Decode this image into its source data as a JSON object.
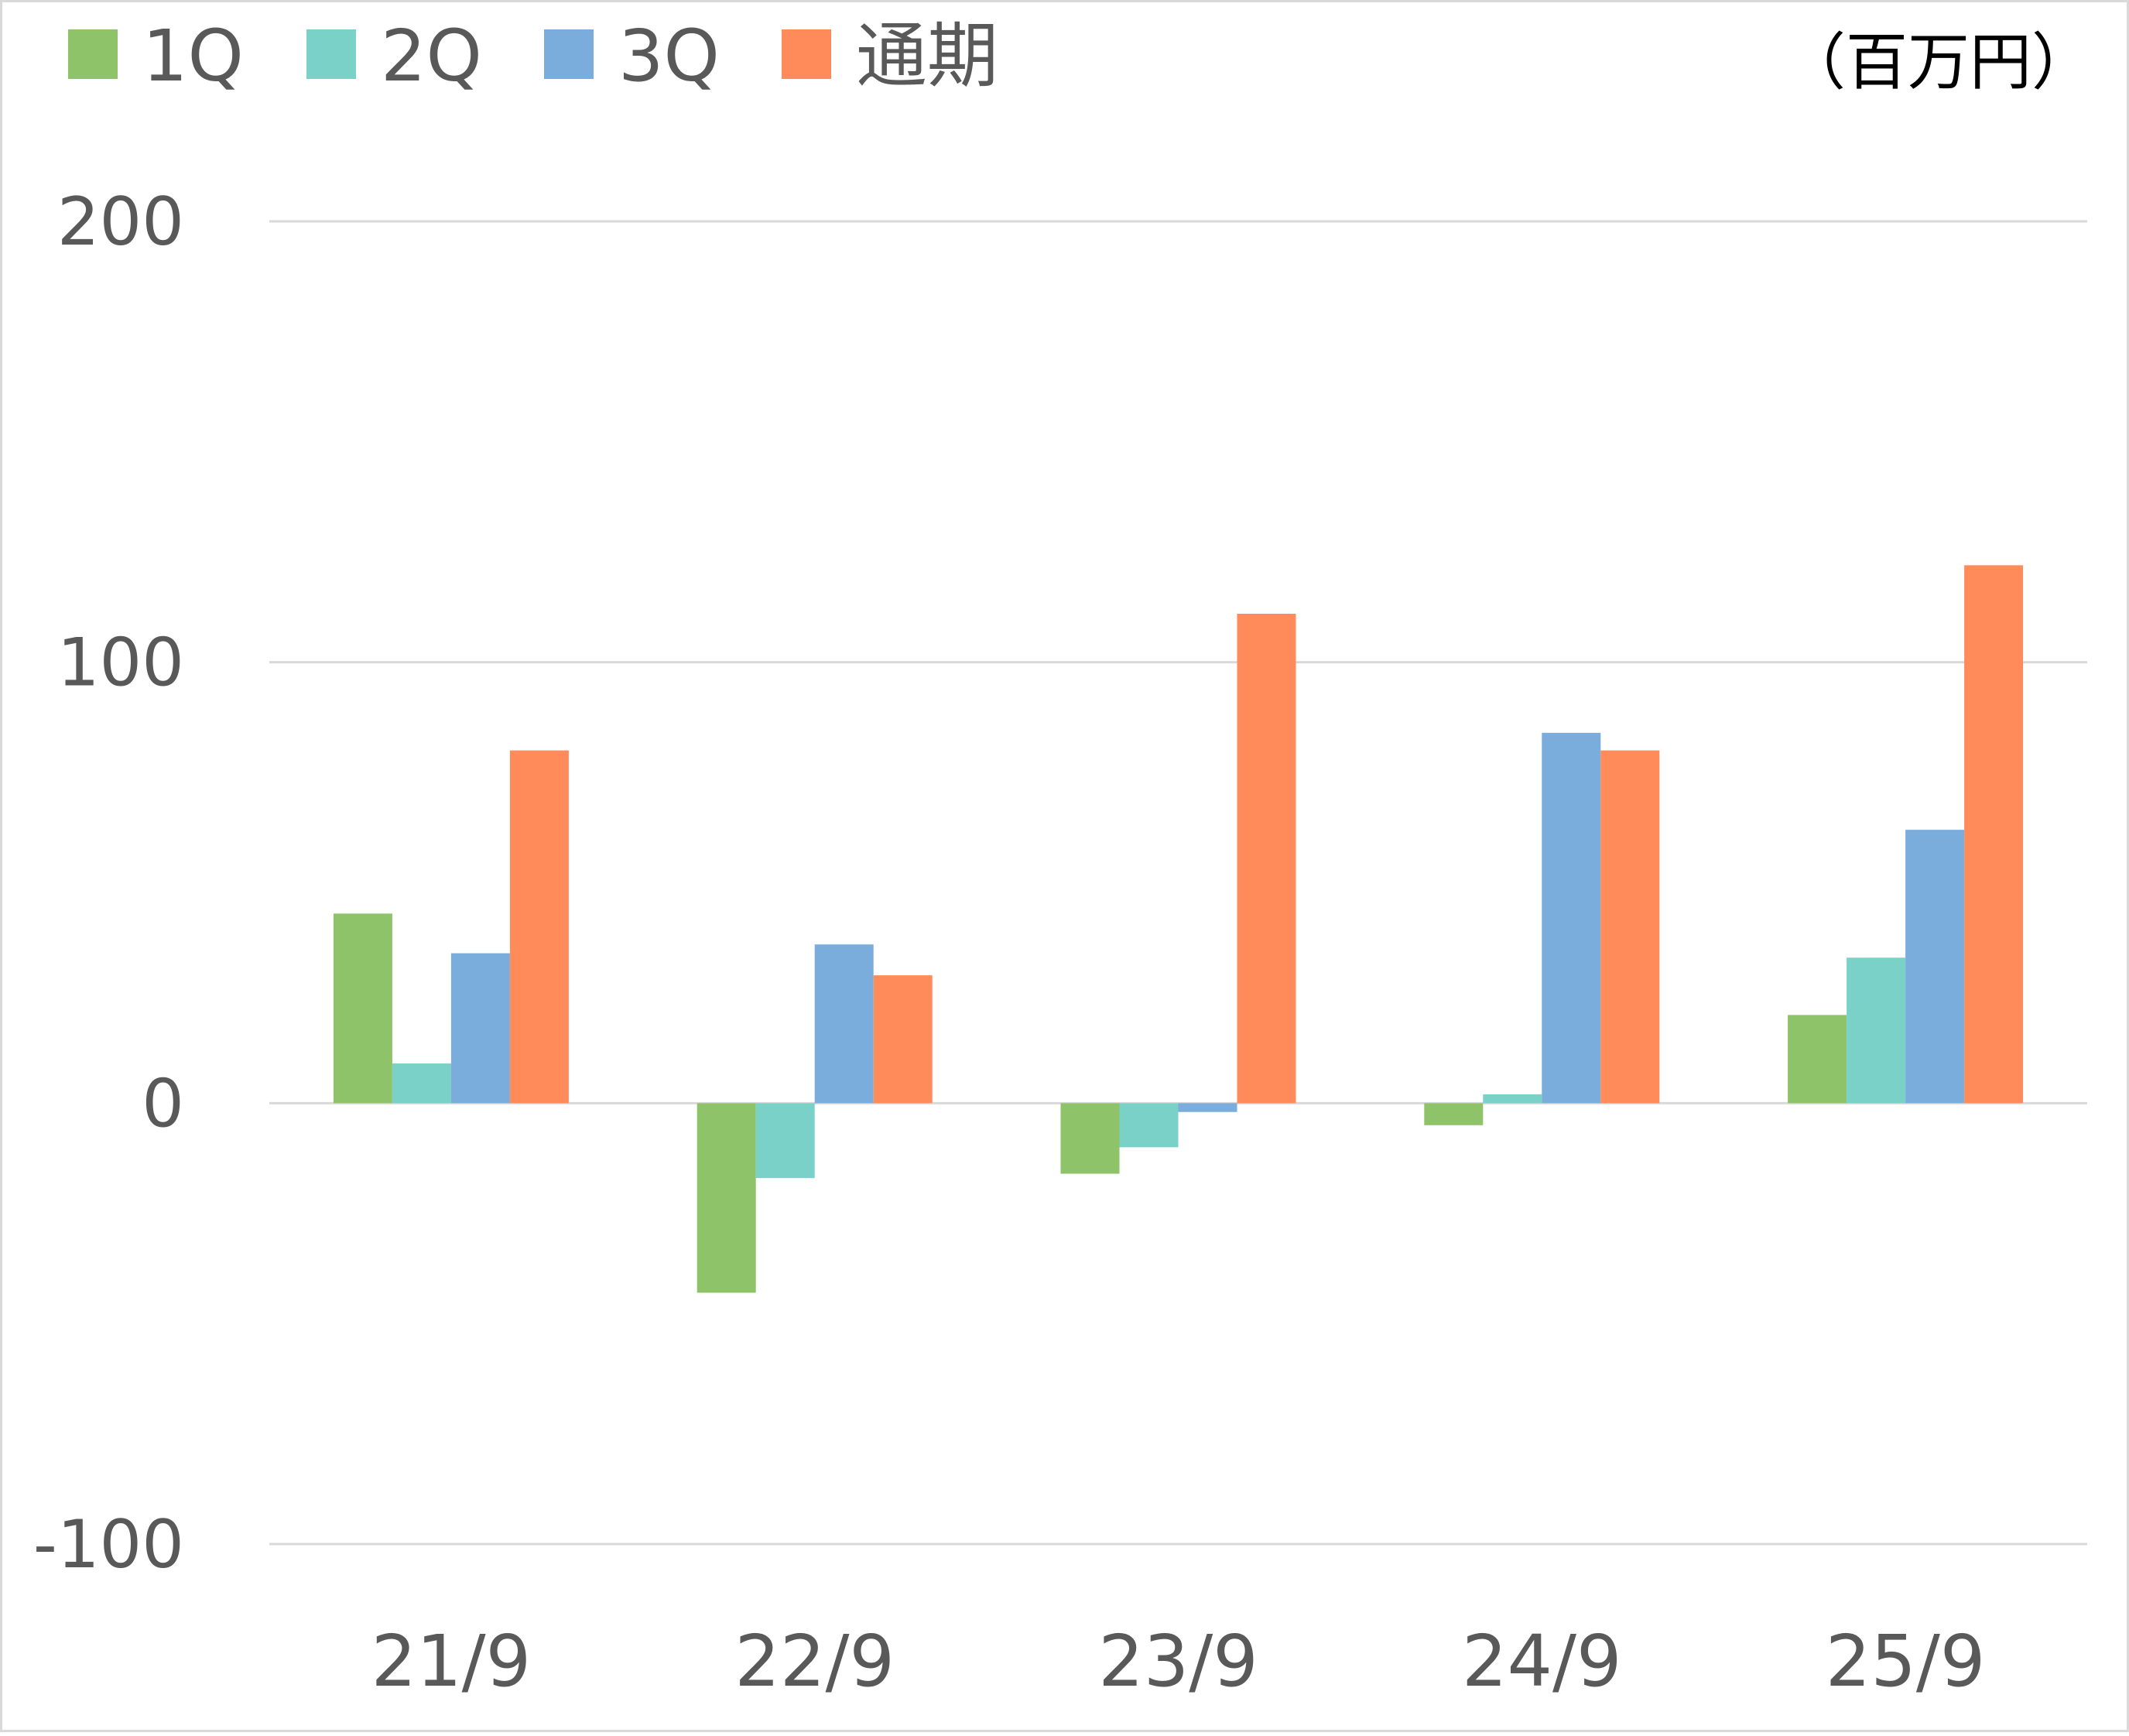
{
  "chart_data": {
    "type": "bar",
    "unit_label": "（百万円）",
    "categories": [
      "21/9",
      "22/9",
      "23/9",
      "24/9",
      "25/9"
    ],
    "series": [
      {
        "name": "1Q",
        "color": "#8FC36A",
        "values": [
          43,
          -43,
          -16,
          -5,
          20
        ]
      },
      {
        "name": "2Q",
        "color": "#7AD1C8",
        "values": [
          9,
          -17,
          -10,
          2,
          33
        ]
      },
      {
        "name": "3Q",
        "color": "#7AACDC",
        "values": [
          34,
          36,
          -2,
          84,
          62
        ]
      },
      {
        "name": "通期",
        "color": "#FF8A5A",
        "values": [
          80,
          29,
          111,
          80,
          122
        ]
      }
    ],
    "y_ticks": [
      "200",
      "100",
      "0",
      "-100"
    ],
    "ylim": [
      -100,
      200
    ],
    "grid": true,
    "legend_position": "top-left"
  }
}
